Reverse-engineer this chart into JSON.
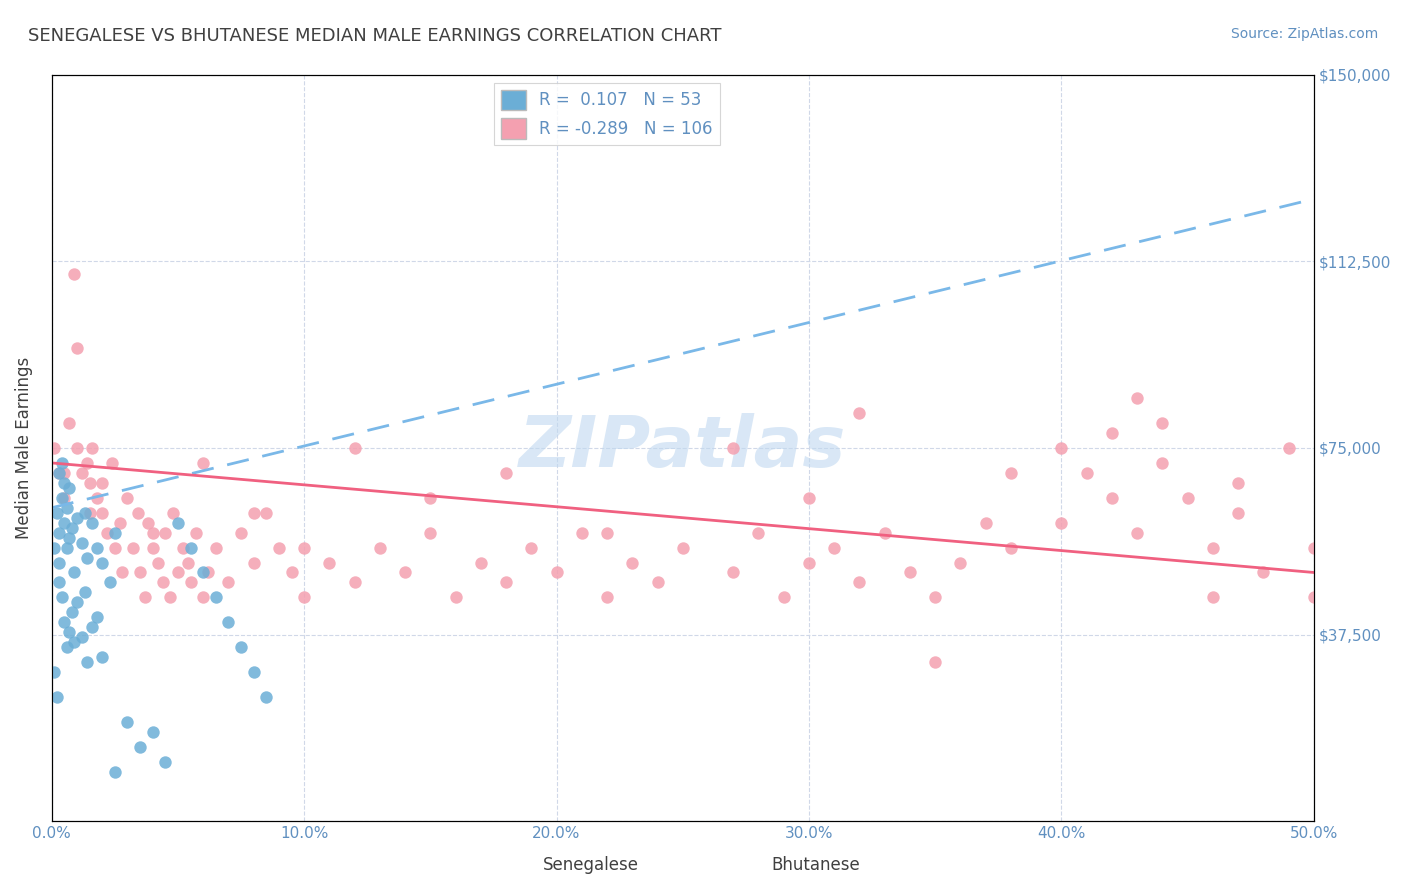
{
  "title": "SENEGALESE VS BHUTANESE MEDIAN MALE EARNINGS CORRELATION CHART",
  "source_text": "Source: ZipAtlas.com",
  "xlabel": "",
  "ylabel": "Median Male Earnings",
  "xlim": [
    0.0,
    0.5
  ],
  "ylim": [
    0,
    150000
  ],
  "yticks": [
    0,
    37500,
    75000,
    112500,
    150000
  ],
  "ytick_labels": [
    "",
    "$37,500",
    "$75,000",
    "$112,500",
    "$150,000"
  ],
  "xticks": [
    0.0,
    0.1,
    0.2,
    0.3,
    0.4,
    0.5
  ],
  "xtick_labels": [
    "0.0%",
    "10.0%",
    "20.0%",
    "30.0%",
    "40.0%",
    "50.0%"
  ],
  "senegalese_color": "#6baed6",
  "bhutanese_color": "#f4a0b0",
  "senegalese_line_color": "#6baed6",
  "bhutanese_line_color": "#f06080",
  "R_senegalese": 0.107,
  "N_senegalese": 53,
  "R_bhutanese": -0.289,
  "N_bhutanese": 106,
  "watermark": "ZIPatlas",
  "watermark_color": "#c0d8f0",
  "title_color": "#404040",
  "axis_label_color": "#404040",
  "tick_color": "#6090c0",
  "grid_color": "#d0d8e8",
  "legend_R_color": "#6090c0",
  "legend_N_color": "#6090c0",
  "background_color": "#ffffff",
  "senegalese_x": [
    0.001,
    0.002,
    0.003,
    0.003,
    0.004,
    0.004,
    0.005,
    0.005,
    0.006,
    0.006,
    0.007,
    0.007,
    0.008,
    0.009,
    0.01,
    0.012,
    0.013,
    0.014,
    0.016,
    0.018,
    0.02,
    0.023,
    0.025,
    0.001,
    0.002,
    0.003,
    0.003,
    0.004,
    0.005,
    0.006,
    0.007,
    0.008,
    0.009,
    0.01,
    0.012,
    0.013,
    0.014,
    0.016,
    0.018,
    0.02,
    0.025,
    0.03,
    0.035,
    0.04,
    0.045,
    0.05,
    0.055,
    0.06,
    0.065,
    0.07,
    0.075,
    0.08,
    0.085
  ],
  "senegalese_y": [
    55000,
    62000,
    58000,
    70000,
    65000,
    72000,
    68000,
    60000,
    55000,
    63000,
    57000,
    67000,
    59000,
    50000,
    61000,
    56000,
    62000,
    53000,
    60000,
    55000,
    52000,
    48000,
    58000,
    30000,
    25000,
    48000,
    52000,
    45000,
    40000,
    35000,
    38000,
    42000,
    36000,
    44000,
    37000,
    46000,
    32000,
    39000,
    41000,
    33000,
    10000,
    20000,
    15000,
    18000,
    12000,
    60000,
    55000,
    50000,
    45000,
    40000,
    35000,
    30000,
    25000
  ],
  "bhutanese_x": [
    0.001,
    0.003,
    0.005,
    0.007,
    0.009,
    0.01,
    0.012,
    0.014,
    0.015,
    0.016,
    0.018,
    0.02,
    0.022,
    0.024,
    0.025,
    0.027,
    0.028,
    0.03,
    0.032,
    0.034,
    0.035,
    0.037,
    0.038,
    0.04,
    0.042,
    0.044,
    0.045,
    0.047,
    0.048,
    0.05,
    0.052,
    0.054,
    0.055,
    0.057,
    0.06,
    0.062,
    0.065,
    0.07,
    0.075,
    0.08,
    0.085,
    0.09,
    0.095,
    0.1,
    0.11,
    0.12,
    0.13,
    0.14,
    0.15,
    0.16,
    0.17,
    0.18,
    0.19,
    0.2,
    0.21,
    0.22,
    0.23,
    0.24,
    0.25,
    0.27,
    0.28,
    0.29,
    0.3,
    0.31,
    0.32,
    0.33,
    0.34,
    0.35,
    0.36,
    0.37,
    0.38,
    0.4,
    0.41,
    0.42,
    0.43,
    0.44,
    0.45,
    0.46,
    0.47,
    0.48,
    0.49,
    0.5,
    0.32,
    0.38,
    0.44,
    0.5,
    0.43,
    0.47,
    0.42,
    0.46,
    0.4,
    0.35,
    0.3,
    0.27,
    0.22,
    0.18,
    0.15,
    0.12,
    0.1,
    0.08,
    0.06,
    0.04,
    0.02,
    0.015,
    0.01,
    0.005
  ],
  "bhutanese_y": [
    75000,
    70000,
    65000,
    80000,
    110000,
    95000,
    70000,
    72000,
    68000,
    75000,
    65000,
    62000,
    58000,
    72000,
    55000,
    60000,
    50000,
    65000,
    55000,
    62000,
    50000,
    45000,
    60000,
    55000,
    52000,
    48000,
    58000,
    45000,
    62000,
    50000,
    55000,
    52000,
    48000,
    58000,
    45000,
    50000,
    55000,
    48000,
    58000,
    52000,
    62000,
    55000,
    50000,
    45000,
    52000,
    48000,
    55000,
    50000,
    58000,
    45000,
    52000,
    48000,
    55000,
    50000,
    58000,
    45000,
    52000,
    48000,
    55000,
    50000,
    58000,
    45000,
    52000,
    55000,
    48000,
    58000,
    50000,
    45000,
    52000,
    60000,
    55000,
    75000,
    70000,
    65000,
    58000,
    72000,
    65000,
    55000,
    68000,
    50000,
    75000,
    45000,
    82000,
    70000,
    80000,
    55000,
    85000,
    62000,
    78000,
    45000,
    60000,
    32000,
    65000,
    75000,
    58000,
    70000,
    65000,
    75000,
    55000,
    62000,
    72000,
    58000,
    68000,
    62000,
    75000,
    70000
  ]
}
